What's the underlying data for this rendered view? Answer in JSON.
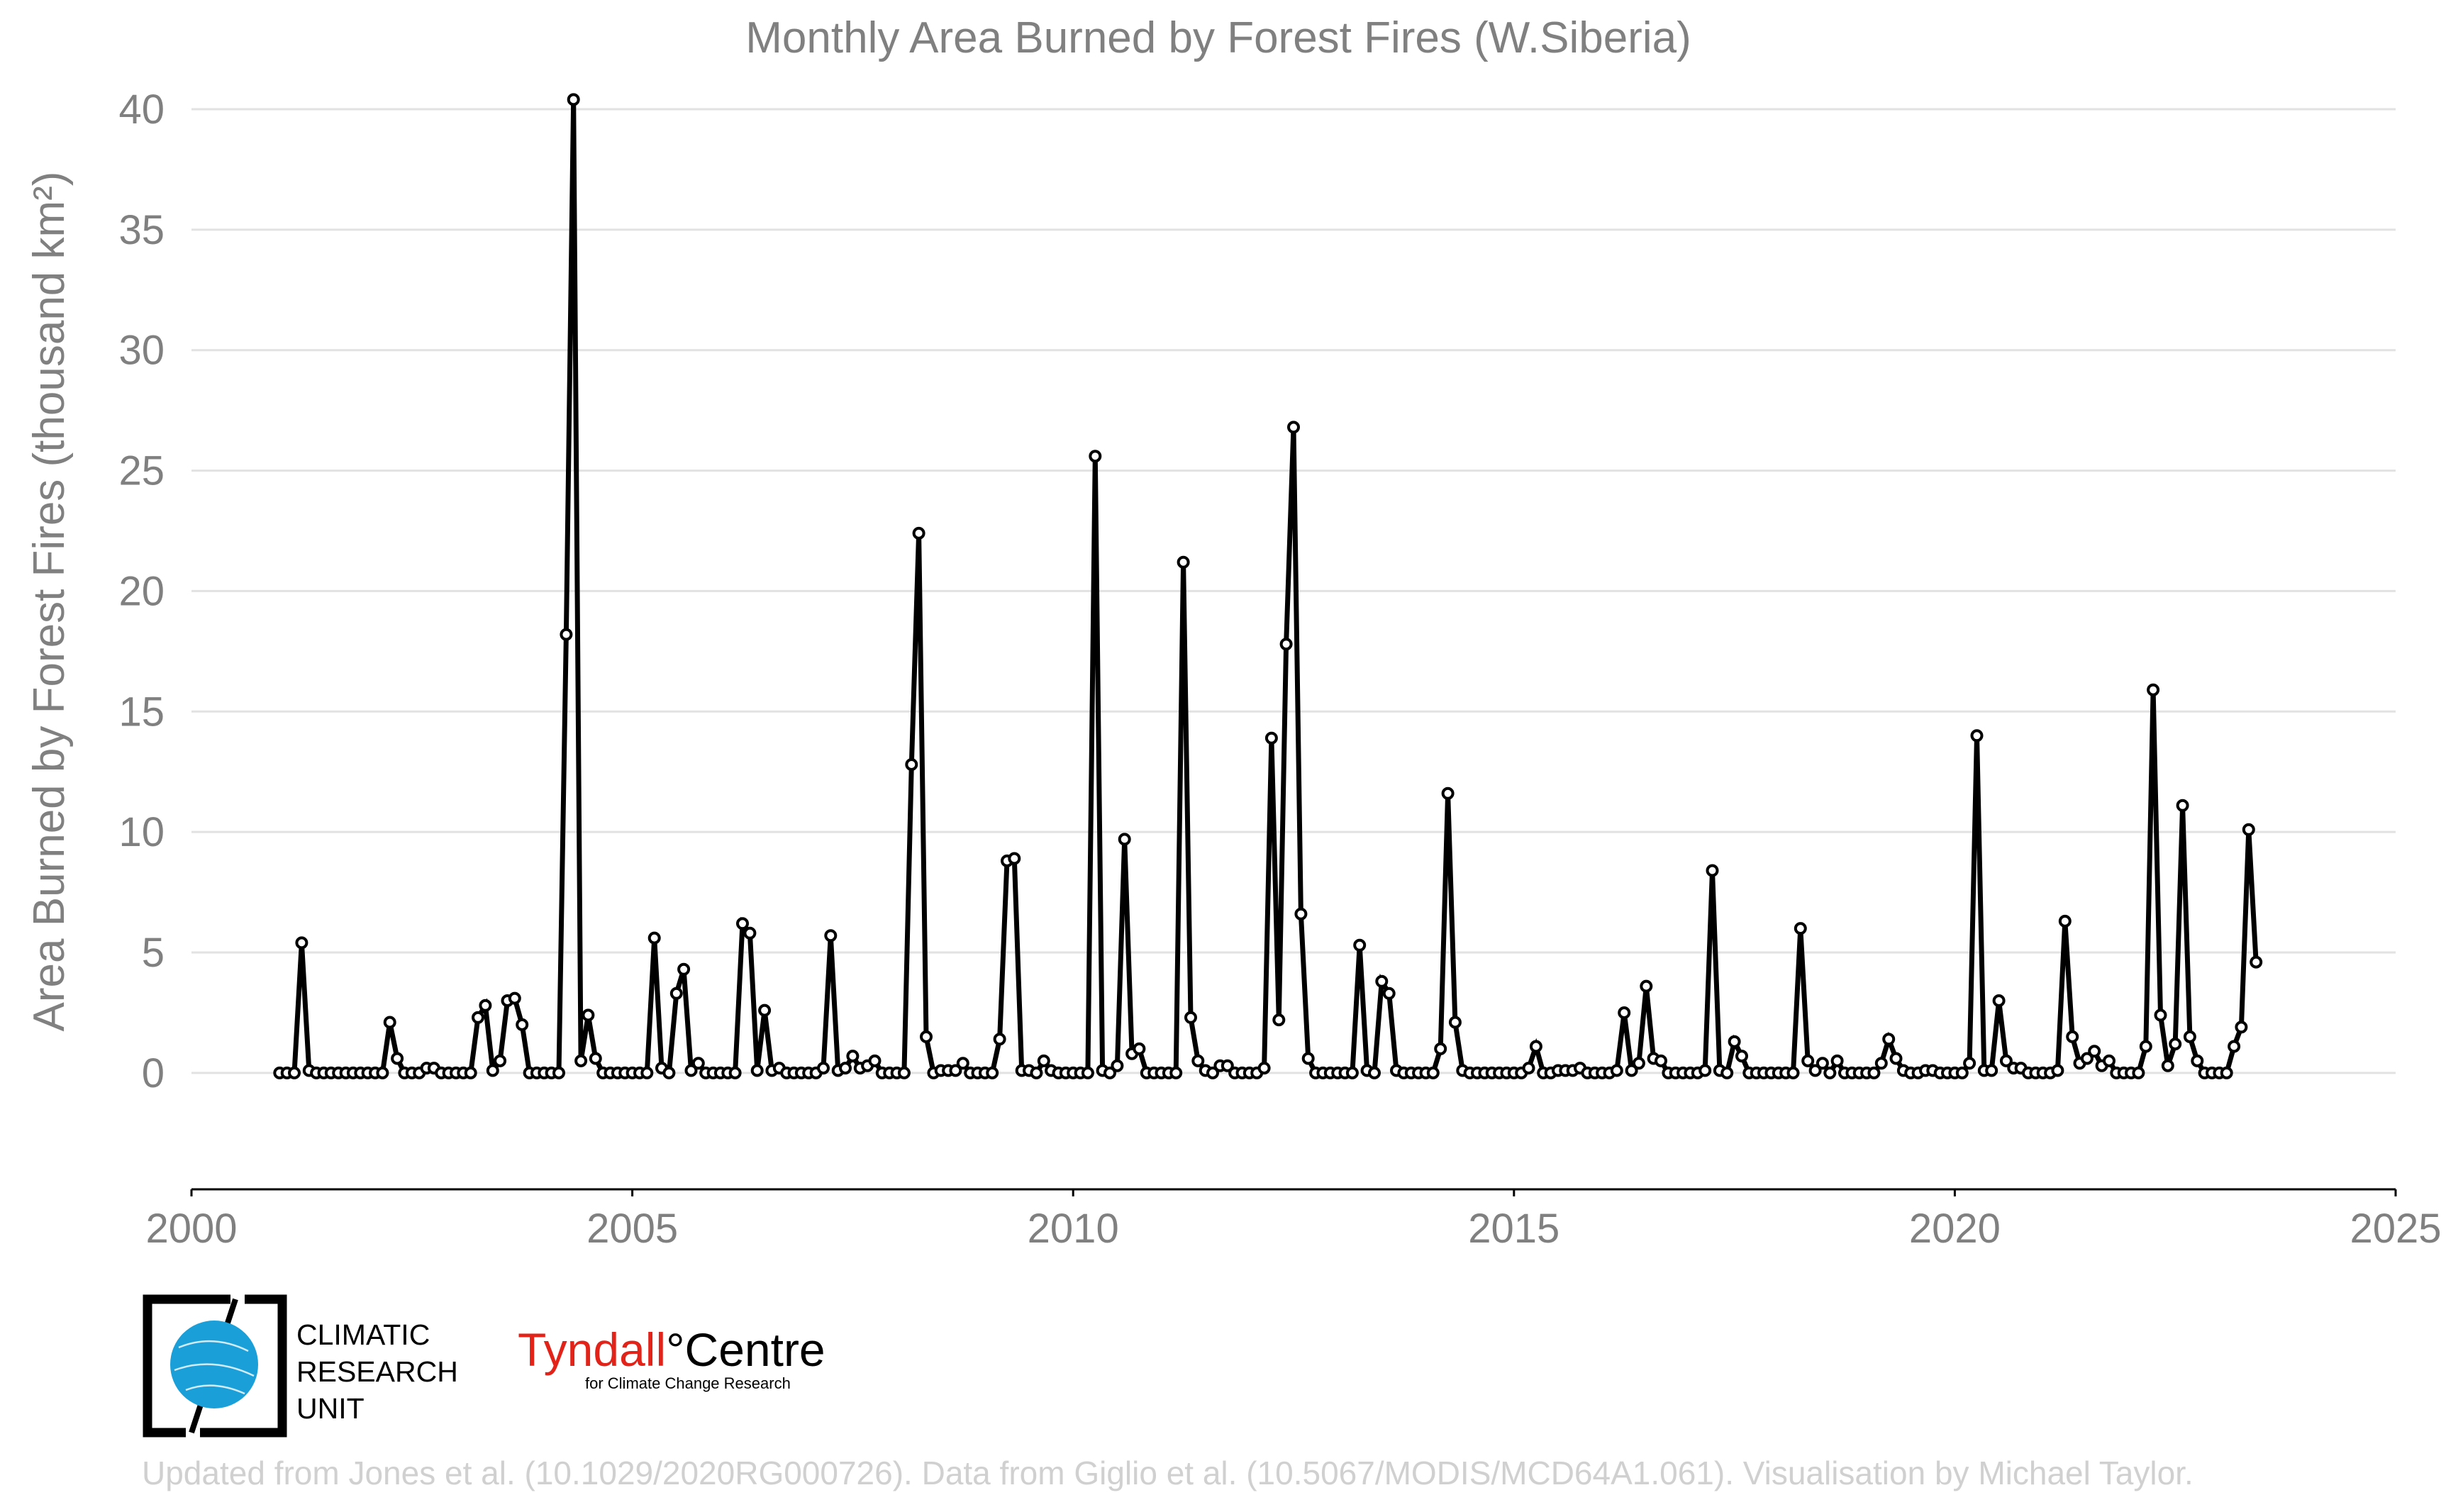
{
  "chart_data": {
    "type": "line",
    "title": "Monthly Area Burned by Forest Fires (W.Siberia)",
    "ylabel": "Area Burned by Forest Fires (thousand km²)",
    "xlabel": "",
    "xlim": [
      2000,
      2025
    ],
    "ylim": [
      -3.3,
      41
    ],
    "x_ticks": [
      "2000",
      "2005",
      "2010",
      "2015",
      "2020",
      "2025"
    ],
    "y_ticks": [
      "0",
      "5",
      "10",
      "15",
      "20",
      "25",
      "30",
      "35",
      "40"
    ],
    "grid": "horizontal",
    "series": [
      {
        "start_year": 2001,
        "start_month": 1,
        "values": [
          0,
          0,
          0,
          5.4,
          0.1,
          0,
          0,
          0,
          0,
          0,
          0,
          0,
          0,
          0,
          0,
          2.1,
          0.6,
          0,
          0,
          0,
          0.2,
          0.2,
          0,
          0,
          0,
          0,
          0,
          2.3,
          2.8,
          0.1,
          0.5,
          3.0,
          3.1,
          2.0,
          0,
          0,
          0,
          0,
          0,
          18.2,
          40.4,
          0.5,
          2.4,
          0.6,
          0,
          0,
          0,
          0,
          0,
          0,
          0,
          5.6,
          0.2,
          0,
          3.3,
          4.3,
          0.1,
          0.4,
          0,
          0,
          0,
          0,
          0,
          6.2,
          5.8,
          0.1,
          2.6,
          0.1,
          0.2,
          0,
          0,
          0,
          0,
          0,
          0.2,
          5.7,
          0.1,
          0.2,
          0.7,
          0.2,
          0.3,
          0.5,
          0,
          0,
          0,
          0,
          12.8,
          22.4,
          1.5,
          0,
          0.1,
          0.1,
          0.1,
          0.4,
          0,
          0,
          0,
          0,
          1.4,
          8.8,
          8.9,
          0.1,
          0.1,
          0,
          0.5,
          0.1,
          0,
          0,
          0,
          0,
          0,
          25.6,
          0.1,
          0,
          0.3,
          9.7,
          0.8,
          1.0,
          0,
          0,
          0,
          0,
          0,
          21.2,
          2.3,
          0.5,
          0.1,
          0,
          0.3,
          0.3,
          0,
          0,
          0,
          0,
          0.2,
          13.9,
          2.2,
          17.8,
          26.8,
          6.6,
          0.6,
          0,
          0,
          0,
          0,
          0,
          0,
          5.3,
          0.1,
          0,
          3.8,
          3.3,
          0.1,
          0,
          0,
          0,
          0,
          0,
          1.0,
          11.6,
          2.1,
          0.1,
          0,
          0,
          0,
          0,
          0,
          0,
          0,
          0,
          0.2,
          1.1,
          0,
          0,
          0.1,
          0.1,
          0.1,
          0.2,
          0,
          0,
          0,
          0,
          0.1,
          2.5,
          0.1,
          0.4,
          3.6,
          0.6,
          0.5,
          0,
          0,
          0,
          0,
          0,
          0.1,
          8.4,
          0.1,
          0,
          1.3,
          0.7,
          0,
          0,
          0,
          0,
          0,
          0,
          0,
          6.0,
          0.5,
          0.1,
          0.4,
          0,
          0.5,
          0,
          0,
          0,
          0,
          0,
          0.4,
          1.4,
          0.6,
          0.1,
          0,
          0,
          0.1,
          0.1,
          0,
          0,
          0,
          0,
          0.4,
          14.0,
          0.1,
          0.1,
          3.0,
          0.5,
          0.2,
          0.2,
          0,
          0,
          0,
          0,
          0.1,
          6.3,
          1.5,
          0.4,
          0.6,
          0.9,
          0.3,
          0.5,
          0,
          0,
          0,
          0,
          1.1,
          15.9,
          2.4,
          0.3,
          1.2,
          11.1,
          1.5,
          0.5,
          0,
          0,
          0,
          0,
          1.1,
          1.9,
          10.1,
          4.6
        ]
      }
    ]
  },
  "logos": {
    "cru_line1": "CLIMATIC",
    "cru_line2": "RESEARCH",
    "cru_line3": "UNIT",
    "tyndall_word": "Tyndall",
    "tyndall_degree": "°",
    "tyndall_centre": "Centre",
    "tyndall_sub": "for Climate Change Research"
  },
  "footer": {
    "credit": "Updated from Jones et al. (10.1029/2020RG000726). Data from Giglio et al. (10.5067/MODIS/MCD64A1.061). Visualisation by Michael Taylor."
  },
  "colors": {
    "line": "#000000",
    "text": "#808080",
    "grid": "#e2e2e2",
    "footer": "#d0d0d0",
    "tyndall_red": "#e2231a",
    "cru_blue": "#1a9fd9"
  }
}
